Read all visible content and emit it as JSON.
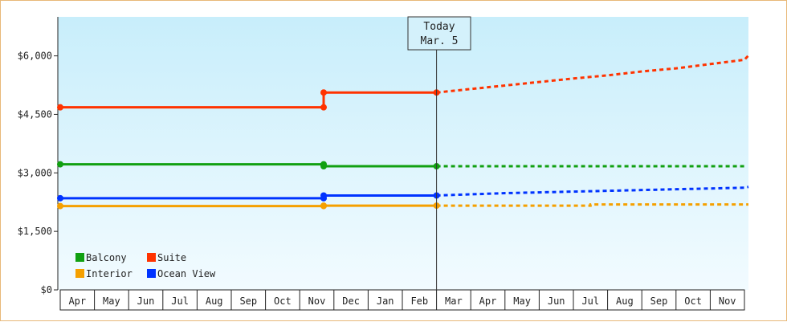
{
  "chart_data": {
    "type": "line",
    "title": "",
    "xlabel": "",
    "ylabel": "",
    "ylim": [
      0,
      7000
    ],
    "y_ticks": [
      "$0",
      "$1,500",
      "$3,000",
      "$4,500",
      "$6,000"
    ],
    "y_tick_values": [
      0,
      1500,
      3000,
      4500,
      6000
    ],
    "categories": [
      "Apr",
      "May",
      "Jun",
      "Jul",
      "Aug",
      "Sep",
      "Oct",
      "Nov",
      "Dec",
      "Jan",
      "Feb",
      "Mar",
      "Apr",
      "May",
      "Jun",
      "Jul",
      "Aug",
      "Sep",
      "Oct",
      "Nov"
    ],
    "grid": false,
    "legend_position": "bottom-left",
    "today_marker": {
      "line1": "Today",
      "line2": "Mar. 5",
      "month_position": 11.0
    },
    "background_gradient": [
      "#c8eefb",
      "#f2fbff"
    ],
    "series": [
      {
        "name": "Balcony",
        "color": "#11a011",
        "historical": [
          [
            0,
            3220
          ],
          [
            7.7,
            3220
          ],
          [
            7.7,
            3170
          ],
          [
            11.0,
            3170
          ]
        ],
        "markers": [
          [
            0,
            3220
          ],
          [
            7.7,
            3220
          ],
          [
            7.7,
            3170
          ],
          [
            11.0,
            3170
          ]
        ],
        "forecast": [
          [
            11.0,
            3170
          ],
          [
            20.0,
            3170
          ]
        ]
      },
      {
        "name": "Suite",
        "color": "#ff3300",
        "historical": [
          [
            0,
            4680
          ],
          [
            7.7,
            4680
          ],
          [
            7.7,
            5060
          ],
          [
            11.0,
            5060
          ]
        ],
        "markers": [
          [
            0,
            4680
          ],
          [
            7.7,
            4680
          ],
          [
            7.7,
            5060
          ],
          [
            11.0,
            5060
          ]
        ],
        "forecast": [
          [
            11.0,
            5060
          ],
          [
            12,
            5150
          ],
          [
            13,
            5240
          ],
          [
            14,
            5330
          ],
          [
            15,
            5420
          ],
          [
            16,
            5500
          ],
          [
            17,
            5600
          ],
          [
            18,
            5680
          ],
          [
            19,
            5790
          ],
          [
            20,
            5900
          ],
          [
            21,
            6010
          ]
        ]
      },
      {
        "name": "Interior",
        "color": "#f5a000",
        "historical": [
          [
            0,
            2150
          ],
          [
            7.7,
            2150
          ],
          [
            7.7,
            2160
          ],
          [
            11.0,
            2160
          ]
        ],
        "markers": [
          [
            0,
            2150
          ],
          [
            7.7,
            2150
          ],
          [
            7.7,
            2160
          ],
          [
            11.0,
            2160
          ]
        ],
        "forecast": [
          [
            11.0,
            2160
          ],
          [
            15.5,
            2160
          ],
          [
            15.5,
            2190
          ],
          [
            21,
            2190
          ]
        ]
      },
      {
        "name": "Ocean View",
        "color": "#0033ff",
        "historical": [
          [
            0,
            2350
          ],
          [
            7.7,
            2350
          ],
          [
            7.7,
            2420
          ],
          [
            11.0,
            2420
          ]
        ],
        "markers": [
          [
            0,
            2350
          ],
          [
            7.7,
            2350
          ],
          [
            7.7,
            2420
          ],
          [
            11.0,
            2420
          ]
        ],
        "forecast": [
          [
            11.0,
            2420
          ],
          [
            12,
            2450
          ],
          [
            13,
            2480
          ],
          [
            14,
            2500
          ],
          [
            15,
            2520
          ],
          [
            16,
            2540
          ],
          [
            17,
            2560
          ],
          [
            18,
            2580
          ],
          [
            19,
            2600
          ],
          [
            20,
            2620
          ],
          [
            21,
            2640
          ]
        ]
      }
    ]
  }
}
